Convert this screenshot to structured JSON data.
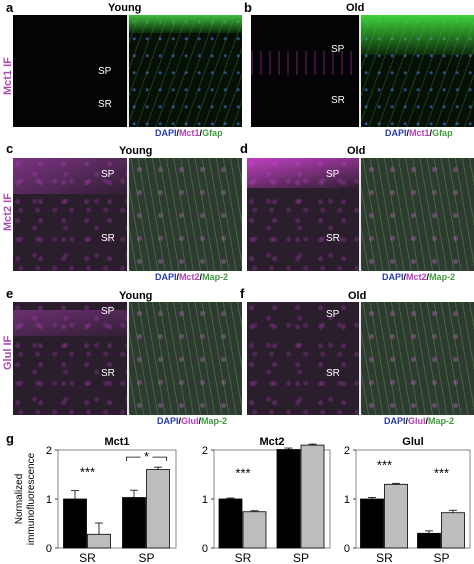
{
  "panels": {
    "a": {
      "label": "a",
      "title": "Young",
      "row_label": "Mct1 IF",
      "regions": [
        "SP",
        "SR"
      ],
      "legend": [
        {
          "text": "DAPI",
          "color": "#2b39a8"
        },
        {
          "text": "/",
          "color": "#000000"
        },
        {
          "text": "Mct1",
          "color": "#b13fb5"
        },
        {
          "text": "/",
          "color": "#000000"
        },
        {
          "text": "Gfap",
          "color": "#3f9a3f"
        }
      ]
    },
    "b": {
      "label": "b",
      "title": "Old",
      "regions": [
        "SP",
        "SR"
      ],
      "legend": [
        {
          "text": "DAPI",
          "color": "#2b39a8"
        },
        {
          "text": "/",
          "color": "#000000"
        },
        {
          "text": "Mct1",
          "color": "#b13fb5"
        },
        {
          "text": "/",
          "color": "#000000"
        },
        {
          "text": "Gfap",
          "color": "#3f9a3f"
        }
      ]
    },
    "c": {
      "label": "c",
      "title": "Young",
      "row_label": "Mct2 IF",
      "regions": [
        "SP",
        "SR"
      ],
      "legend": [
        {
          "text": "DAPI",
          "color": "#2b39a8"
        },
        {
          "text": "/",
          "color": "#000000"
        },
        {
          "text": "Mct2",
          "color": "#b13fb5"
        },
        {
          "text": "/",
          "color": "#000000"
        },
        {
          "text": "Map-2",
          "color": "#3f9a3f"
        }
      ]
    },
    "d": {
      "label": "d",
      "title": "Old",
      "regions": [
        "SP",
        "SR"
      ],
      "legend": [
        {
          "text": "DAPI",
          "color": "#2b39a8"
        },
        {
          "text": "/",
          "color": "#000000"
        },
        {
          "text": "Mct2",
          "color": "#b13fb5"
        },
        {
          "text": "/",
          "color": "#000000"
        },
        {
          "text": "Map-2",
          "color": "#3f9a3f"
        }
      ]
    },
    "e": {
      "label": "e",
      "title": "Young",
      "row_label": "Glul IF",
      "regions": [
        "SP",
        "SR"
      ],
      "legend": [
        {
          "text": "DAPI",
          "color": "#2b39a8"
        },
        {
          "text": "/",
          "color": "#000000"
        },
        {
          "text": "Glul",
          "color": "#b13fb5"
        },
        {
          "text": "/",
          "color": "#000000"
        },
        {
          "text": "Map-2",
          "color": "#3f9a3f"
        }
      ]
    },
    "f": {
      "label": "f",
      "title": "Old",
      "regions": [
        "SP",
        "SR"
      ],
      "legend": [
        {
          "text": "DAPI",
          "color": "#2b39a8"
        },
        {
          "text": "/",
          "color": "#000000"
        },
        {
          "text": "Glul",
          "color": "#b13fb5"
        },
        {
          "text": "/",
          "color": "#000000"
        },
        {
          "text": "Map-2",
          "color": "#3f9a3f"
        }
      ]
    },
    "g": {
      "label": "g"
    }
  },
  "chart_data": [
    {
      "type": "bar",
      "title": "Mct1",
      "ylabel": "Normalized immunofluorescence",
      "categories": [
        "SR",
        "SP"
      ],
      "ylim": [
        0,
        2
      ],
      "yticks": [
        0,
        1,
        2
      ],
      "series": [
        {
          "values": [
            1.0,
            1.03
          ],
          "errors": [
            0.17,
            0.15
          ],
          "color": "#000000"
        },
        {
          "values": [
            0.28,
            1.6
          ],
          "errors": [
            0.23,
            0.05
          ],
          "color": "#bdbdbd"
        }
      ],
      "annotations": [
        {
          "text": "***",
          "category": "SR"
        },
        {
          "text": "*",
          "category": "SP",
          "bracket": true
        }
      ]
    },
    {
      "type": "bar",
      "title": "Mct2",
      "categories": [
        "SR",
        "SP"
      ],
      "ylim": [
        0,
        2
      ],
      "yticks": [
        0,
        1,
        2
      ],
      "series": [
        {
          "values": [
            1.0,
            2.01
          ],
          "errors": [
            0.02,
            0.03
          ],
          "color": "#000000"
        },
        {
          "values": [
            0.74,
            2.1
          ],
          "errors": [
            0.02,
            0.02
          ],
          "color": "#bdbdbd"
        }
      ],
      "annotations": [
        {
          "text": "***",
          "category": "SR"
        }
      ]
    },
    {
      "type": "bar",
      "title": "Glul",
      "categories": [
        "SR",
        "SP"
      ],
      "ylim": [
        0,
        2
      ],
      "yticks": [
        0,
        1,
        2
      ],
      "series": [
        {
          "values": [
            1.0,
            0.3
          ],
          "errors": [
            0.03,
            0.05
          ],
          "color": "#000000"
        },
        {
          "values": [
            1.3,
            0.72
          ],
          "errors": [
            0.02,
            0.05
          ],
          "color": "#bdbdbd"
        }
      ],
      "annotations": [
        {
          "text": "***",
          "category": "SR"
        },
        {
          "text": "***",
          "category": "SP"
        }
      ]
    }
  ]
}
